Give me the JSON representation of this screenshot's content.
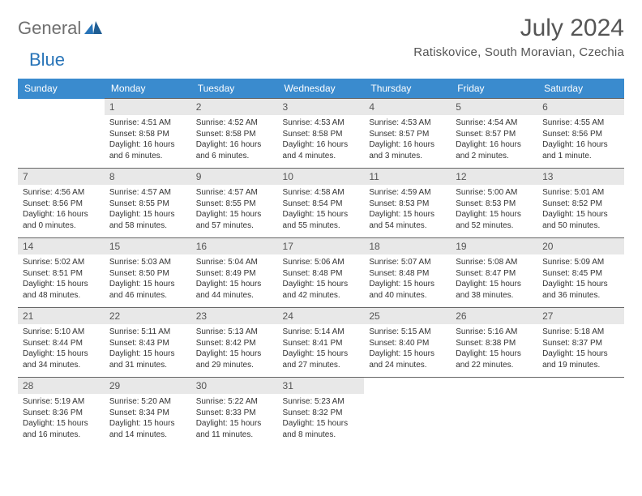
{
  "logo": {
    "text1": "General",
    "text2": "Blue",
    "color1": "#6f6f6f",
    "color2": "#2874b8"
  },
  "title": "July 2024",
  "location": "Ratiskovice, South Moravian, Czechia",
  "headerRow": {
    "bg": "#3a8bce",
    "fg": "#ffffff"
  },
  "weekdays": [
    "Sunday",
    "Monday",
    "Tuesday",
    "Wednesday",
    "Thursday",
    "Friday",
    "Saturday"
  ],
  "layout": {
    "firstDayIndex": 1,
    "daysInMonth": 31
  },
  "days": [
    {
      "n": 1,
      "sunrise": "4:51 AM",
      "sunset": "8:58 PM",
      "daylight": "16 hours and 6 minutes."
    },
    {
      "n": 2,
      "sunrise": "4:52 AM",
      "sunset": "8:58 PM",
      "daylight": "16 hours and 6 minutes."
    },
    {
      "n": 3,
      "sunrise": "4:53 AM",
      "sunset": "8:58 PM",
      "daylight": "16 hours and 4 minutes."
    },
    {
      "n": 4,
      "sunrise": "4:53 AM",
      "sunset": "8:57 PM",
      "daylight": "16 hours and 3 minutes."
    },
    {
      "n": 5,
      "sunrise": "4:54 AM",
      "sunset": "8:57 PM",
      "daylight": "16 hours and 2 minutes."
    },
    {
      "n": 6,
      "sunrise": "4:55 AM",
      "sunset": "8:56 PM",
      "daylight": "16 hours and 1 minute."
    },
    {
      "n": 7,
      "sunrise": "4:56 AM",
      "sunset": "8:56 PM",
      "daylight": "16 hours and 0 minutes."
    },
    {
      "n": 8,
      "sunrise": "4:57 AM",
      "sunset": "8:55 PM",
      "daylight": "15 hours and 58 minutes."
    },
    {
      "n": 9,
      "sunrise": "4:57 AM",
      "sunset": "8:55 PM",
      "daylight": "15 hours and 57 minutes."
    },
    {
      "n": 10,
      "sunrise": "4:58 AM",
      "sunset": "8:54 PM",
      "daylight": "15 hours and 55 minutes."
    },
    {
      "n": 11,
      "sunrise": "4:59 AM",
      "sunset": "8:53 PM",
      "daylight": "15 hours and 54 minutes."
    },
    {
      "n": 12,
      "sunrise": "5:00 AM",
      "sunset": "8:53 PM",
      "daylight": "15 hours and 52 minutes."
    },
    {
      "n": 13,
      "sunrise": "5:01 AM",
      "sunset": "8:52 PM",
      "daylight": "15 hours and 50 minutes."
    },
    {
      "n": 14,
      "sunrise": "5:02 AM",
      "sunset": "8:51 PM",
      "daylight": "15 hours and 48 minutes."
    },
    {
      "n": 15,
      "sunrise": "5:03 AM",
      "sunset": "8:50 PM",
      "daylight": "15 hours and 46 minutes."
    },
    {
      "n": 16,
      "sunrise": "5:04 AM",
      "sunset": "8:49 PM",
      "daylight": "15 hours and 44 minutes."
    },
    {
      "n": 17,
      "sunrise": "5:06 AM",
      "sunset": "8:48 PM",
      "daylight": "15 hours and 42 minutes."
    },
    {
      "n": 18,
      "sunrise": "5:07 AM",
      "sunset": "8:48 PM",
      "daylight": "15 hours and 40 minutes."
    },
    {
      "n": 19,
      "sunrise": "5:08 AM",
      "sunset": "8:47 PM",
      "daylight": "15 hours and 38 minutes."
    },
    {
      "n": 20,
      "sunrise": "5:09 AM",
      "sunset": "8:45 PM",
      "daylight": "15 hours and 36 minutes."
    },
    {
      "n": 21,
      "sunrise": "5:10 AM",
      "sunset": "8:44 PM",
      "daylight": "15 hours and 34 minutes."
    },
    {
      "n": 22,
      "sunrise": "5:11 AM",
      "sunset": "8:43 PM",
      "daylight": "15 hours and 31 minutes."
    },
    {
      "n": 23,
      "sunrise": "5:13 AM",
      "sunset": "8:42 PM",
      "daylight": "15 hours and 29 minutes."
    },
    {
      "n": 24,
      "sunrise": "5:14 AM",
      "sunset": "8:41 PM",
      "daylight": "15 hours and 27 minutes."
    },
    {
      "n": 25,
      "sunrise": "5:15 AM",
      "sunset": "8:40 PM",
      "daylight": "15 hours and 24 minutes."
    },
    {
      "n": 26,
      "sunrise": "5:16 AM",
      "sunset": "8:38 PM",
      "daylight": "15 hours and 22 minutes."
    },
    {
      "n": 27,
      "sunrise": "5:18 AM",
      "sunset": "8:37 PM",
      "daylight": "15 hours and 19 minutes."
    },
    {
      "n": 28,
      "sunrise": "5:19 AM",
      "sunset": "8:36 PM",
      "daylight": "15 hours and 16 minutes."
    },
    {
      "n": 29,
      "sunrise": "5:20 AM",
      "sunset": "8:34 PM",
      "daylight": "15 hours and 14 minutes."
    },
    {
      "n": 30,
      "sunrise": "5:22 AM",
      "sunset": "8:33 PM",
      "daylight": "15 hours and 11 minutes."
    },
    {
      "n": 31,
      "sunrise": "5:23 AM",
      "sunset": "8:32 PM",
      "daylight": "15 hours and 8 minutes."
    }
  ],
  "labels": {
    "sunrise": "Sunrise:",
    "sunset": "Sunset:",
    "daylight": "Daylight:"
  }
}
